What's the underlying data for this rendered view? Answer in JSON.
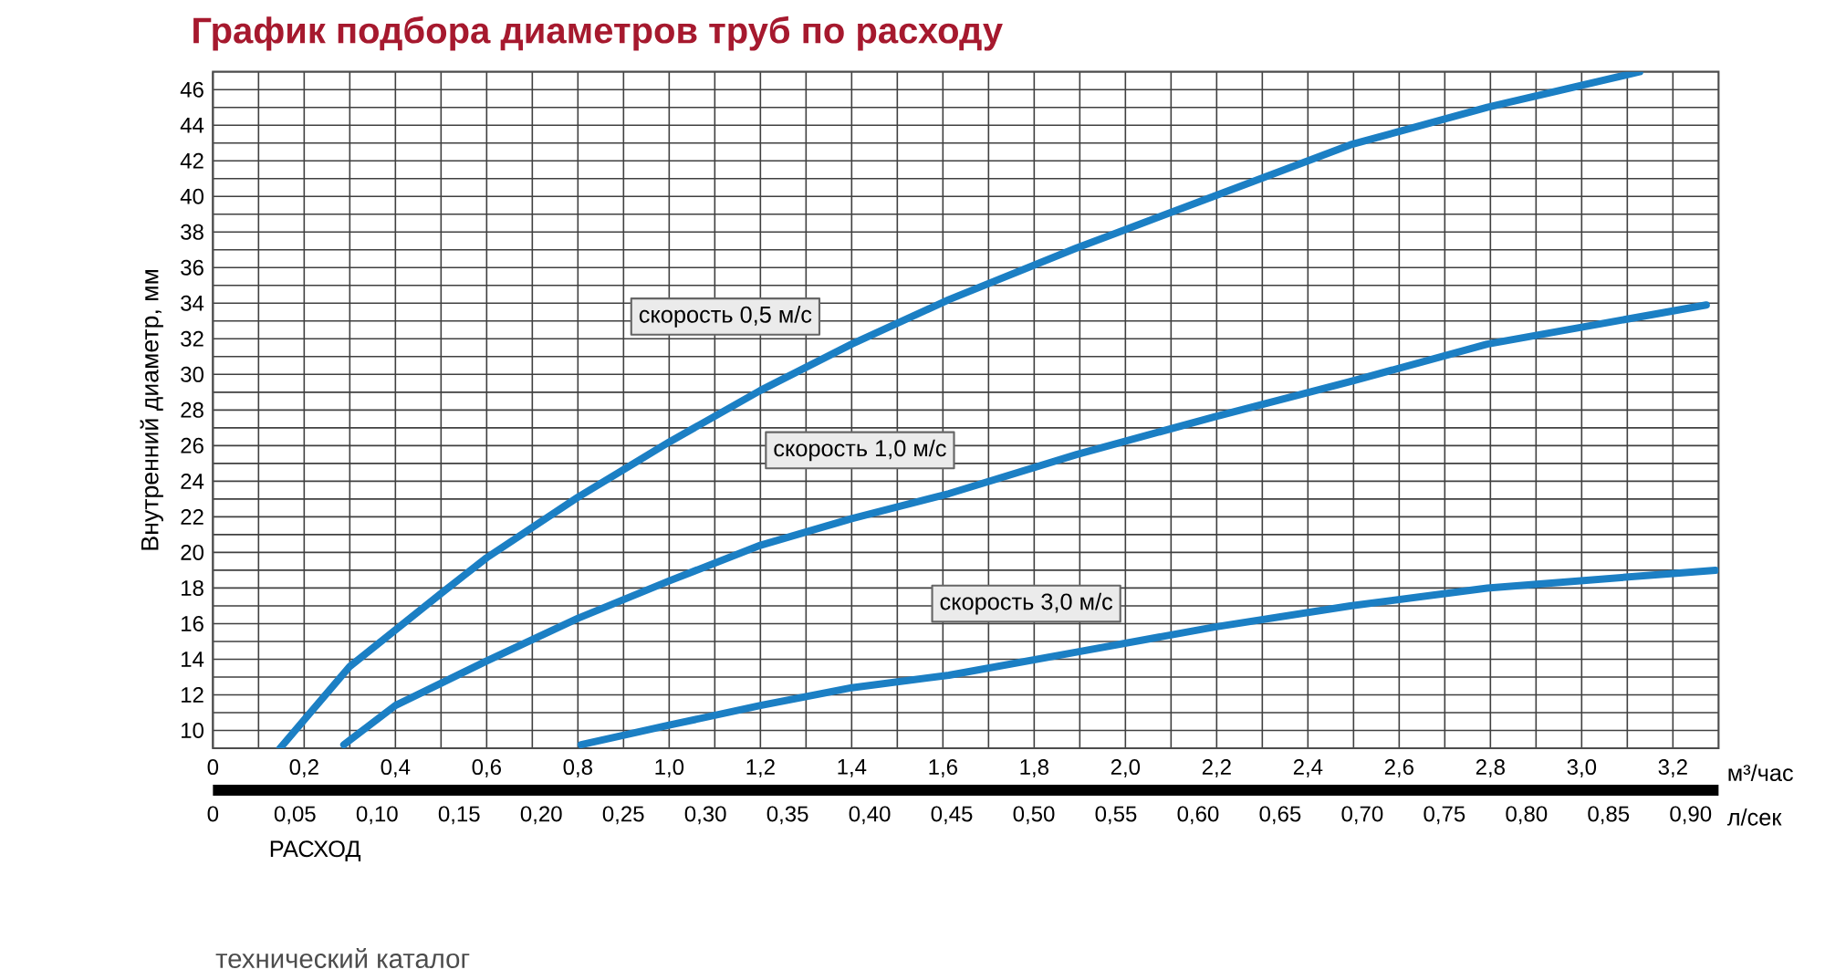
{
  "chart_data": {
    "type": "line",
    "title": "График подбора диаметров труб по расходу",
    "xlabel": "м³/час",
    "ylabel": "Внутренний диаметр, мм",
    "x2label": "л/сек",
    "xlim": [
      0,
      3.3
    ],
    "ylim": [
      9,
      47
    ],
    "x2lim": [
      0,
      0.917
    ],
    "xticks": [
      0,
      {
        "value": 0.1,
        "label": null
      },
      {
        "value": 0.2,
        "label": "0,2"
      },
      {
        "value": 0.3,
        "label": null
      },
      {
        "value": 0.4,
        "label": "0,4"
      },
      {
        "value": 0.5,
        "label": null
      },
      {
        "value": 0.6,
        "label": "0,6"
      },
      {
        "value": 0.7,
        "label": null
      },
      {
        "value": 0.8,
        "label": "0,8"
      },
      {
        "value": 0.9,
        "label": null
      },
      {
        "value": 1.0,
        "label": "1,0"
      },
      {
        "value": 1.1,
        "label": null
      },
      {
        "value": 1.2,
        "label": "1,2"
      },
      {
        "value": 1.3,
        "label": null
      },
      {
        "value": 1.4,
        "label": "1,4"
      },
      {
        "value": 1.5,
        "label": null
      },
      {
        "value": 1.6,
        "label": "1,6"
      },
      {
        "value": 1.7,
        "label": null
      },
      {
        "value": 1.8,
        "label": "1,8"
      },
      {
        "value": 1.9,
        "label": null
      },
      {
        "value": 2.0,
        "label": "2,0"
      },
      {
        "value": 2.1,
        "label": null
      },
      {
        "value": 2.2,
        "label": "2,2"
      },
      {
        "value": 2.3,
        "label": null
      },
      {
        "value": 2.4,
        "label": "2,4"
      },
      {
        "value": 2.5,
        "label": null
      },
      {
        "value": 2.6,
        "label": "2,6"
      },
      {
        "value": 2.7,
        "label": null
      },
      {
        "value": 2.8,
        "label": "2,8"
      },
      {
        "value": 2.9,
        "label": null
      },
      {
        "value": 3.0,
        "label": "3,0"
      },
      {
        "value": 3.1,
        "label": null
      },
      {
        "value": 3.2,
        "label": "3,2"
      }
    ],
    "yticks": [
      10,
      {
        "value": 11,
        "label": null
      },
      12,
      {
        "value": 13,
        "label": null
      },
      14,
      {
        "value": 15,
        "label": null
      },
      16,
      {
        "value": 17,
        "label": null
      },
      18,
      {
        "value": 19,
        "label": null
      },
      20,
      {
        "value": 21,
        "label": null
      },
      22,
      {
        "value": 23,
        "label": null
      },
      24,
      {
        "value": 25,
        "label": null
      },
      26,
      {
        "value": 27,
        "label": null
      },
      28,
      {
        "value": 29,
        "label": null
      },
      30,
      {
        "value": 31,
        "label": null
      },
      32,
      {
        "value": 33,
        "label": null
      },
      34,
      {
        "value": 35,
        "label": null
      },
      36,
      {
        "value": 37,
        "label": null
      },
      38,
      {
        "value": 39,
        "label": null
      },
      40,
      {
        "value": 41,
        "label": null
      },
      42,
      {
        "value": 43,
        "label": null
      },
      44,
      {
        "value": 45,
        "label": null
      },
      46
    ],
    "x2ticks": [
      0,
      {
        "value": 0.05,
        "label": "0,05"
      },
      {
        "value": 0.1,
        "label": "0,10"
      },
      {
        "value": 0.15,
        "label": "0,15"
      },
      {
        "value": 0.2,
        "label": "0,20"
      },
      {
        "value": 0.25,
        "label": "0,25"
      },
      {
        "value": 0.3,
        "label": "0,30"
      },
      {
        "value": 0.35,
        "label": "0,35"
      },
      {
        "value": 0.4,
        "label": "0,40"
      },
      {
        "value": 0.45,
        "label": "0,45"
      },
      {
        "value": 0.5,
        "label": "0,50"
      },
      {
        "value": 0.55,
        "label": "0,55"
      },
      {
        "value": 0.6,
        "label": "0,60"
      },
      {
        "value": 0.65,
        "label": "0,65"
      },
      {
        "value": 0.7,
        "label": "0,70"
      },
      {
        "value": 0.75,
        "label": "0,75"
      },
      {
        "value": 0.8,
        "label": "0,80"
      },
      {
        "value": 0.85,
        "label": "0,85"
      },
      {
        "value": 0.9,
        "label": "0,90"
      }
    ],
    "grid": true,
    "marker": "none",
    "line_style": "solid",
    "series": [
      {
        "name": "скорость 0,5 м/с",
        "color": "#1b7fc4",
        "x": [
          0.147,
          0.3,
          0.5,
          0.6,
          0.8,
          1.0,
          1.2,
          1.4,
          1.613,
          1.893,
          2.193,
          2.493,
          2.793,
          3.127
        ],
        "values": [
          9,
          13.6,
          17.7,
          19.7,
          23.1,
          26.2,
          29.1,
          31.7,
          34.2,
          37.1,
          40.0,
          42.9,
          45.0,
          47.0
        ]
      },
      {
        "name": "скорость 1,0 м/с",
        "color": "#1b7fc4",
        "x": [
          0.287,
          0.4,
          0.6,
          0.8,
          1.0,
          1.2,
          1.4,
          1.613,
          1.893,
          2.193,
          2.493,
          2.793,
          3.273
        ],
        "values": [
          9.2,
          11.4,
          13.9,
          16.3,
          18.4,
          20.4,
          21.9,
          23.3,
          25.5,
          27.6,
          29.6,
          31.7,
          33.9
        ]
      },
      {
        "name": "скорость 3,0 м/с",
        "color": "#1b7fc4",
        "x": [
          0.807,
          1.0,
          1.2,
          1.4,
          1.613,
          1.893,
          2.193,
          2.493,
          2.793,
          3.293
        ],
        "values": [
          9.2,
          10.3,
          11.4,
          12.4,
          13.1,
          14.4,
          15.8,
          17.0,
          18.0,
          19.0
        ]
      }
    ],
    "annotations": [
      "РАСХОД",
      "технический каталог"
    ]
  }
}
